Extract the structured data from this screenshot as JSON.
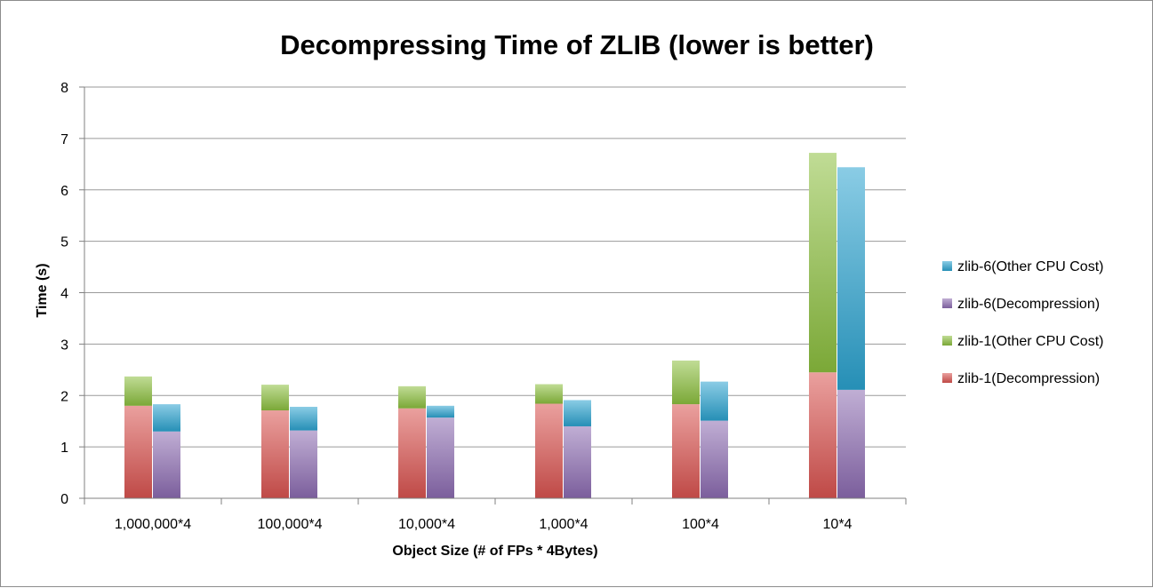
{
  "chart_data": {
    "type": "bar",
    "stacked": true,
    "title": "Decompressing Time of ZLIB (lower is better)",
    "xlabel": "Object Size (# of FPs * 4Bytes)",
    "ylabel": "Time (s)",
    "ylim": [
      0,
      8
    ],
    "yticks": [
      0,
      1,
      2,
      3,
      4,
      5,
      6,
      7,
      8
    ],
    "grid": true,
    "legend_position": "right",
    "categories": [
      "1,000,000*4",
      "100,000*4",
      "10,000*4",
      "1,000*4",
      "100*4",
      "10*4"
    ],
    "series": [
      {
        "name": "zlib-1(Decompression)",
        "stack": "zlib-1",
        "color": "#d9534f",
        "values": [
          1.8,
          1.71,
          1.75,
          1.84,
          1.83,
          2.45
        ]
      },
      {
        "name": "zlib-1(Other CPU Cost)",
        "stack": "zlib-1",
        "color": "#8cbf3f",
        "values": [
          0.57,
          0.5,
          0.43,
          0.38,
          0.85,
          4.27
        ]
      },
      {
        "name": "zlib-6(Decompression)",
        "stack": "zlib-6",
        "color": "#8c6bb1",
        "values": [
          1.3,
          1.32,
          1.57,
          1.4,
          1.51,
          2.11
        ]
      },
      {
        "name": "zlib-6(Other CPU Cost)",
        "stack": "zlib-6",
        "color": "#2ba3cf",
        "values": [
          0.53,
          0.46,
          0.23,
          0.51,
          0.76,
          4.33
        ]
      }
    ],
    "legend_order": [
      3,
      2,
      1,
      0
    ]
  }
}
